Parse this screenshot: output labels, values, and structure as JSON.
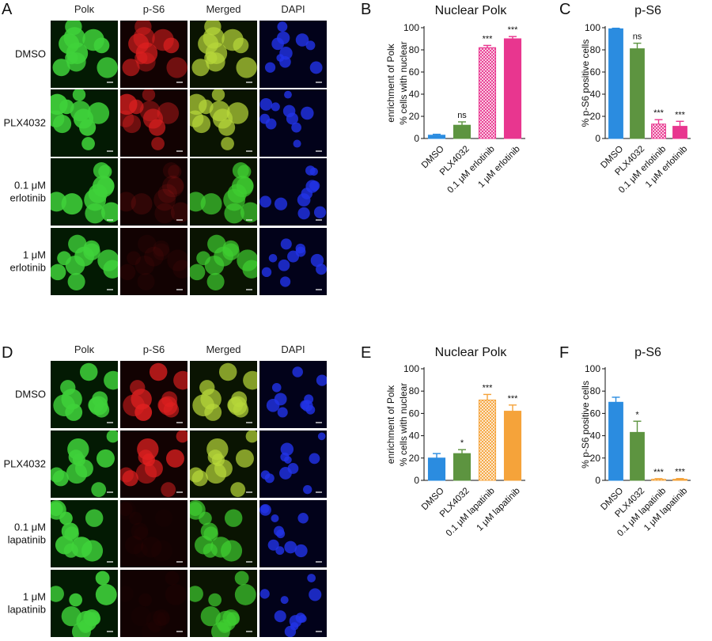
{
  "panels": {
    "A": "A",
    "B": "B",
    "C": "C",
    "D": "D",
    "E": "E",
    "F": "F"
  },
  "micrographs": [
    {
      "letter": "A",
      "columns": [
        "Polκ",
        "p-S6",
        "Merged",
        "DAPI"
      ],
      "rows": [
        {
          "label": [
            "DMSO"
          ],
          "green": 0.9,
          "red": 0.8
        },
        {
          "label": [
            "PLX4032"
          ],
          "green": 0.95,
          "red": 0.75
        },
        {
          "label": [
            "0.1 μM",
            "erlotinib"
          ],
          "green": 0.8,
          "red": 0.15
        },
        {
          "label": [
            "1 μM",
            "erlotinib"
          ],
          "green": 0.8,
          "red": 0.08
        }
      ]
    },
    {
      "letter": "D",
      "columns": [
        "Polκ",
        "p-S6",
        "Merged",
        "DAPI"
      ],
      "rows": [
        {
          "label": [
            "DMSO"
          ],
          "green": 0.85,
          "red": 0.9
        },
        {
          "label": [
            "PLX4032"
          ],
          "green": 0.85,
          "red": 0.85
        },
        {
          "label": [
            "0.1 μM",
            "lapatinib"
          ],
          "green": 0.9,
          "red": 0.03
        },
        {
          "label": [
            "1 μM",
            "lapatinib"
          ],
          "green": 0.9,
          "red": 0.03
        }
      ]
    }
  ],
  "chart_data": [
    {
      "panel": "B",
      "type": "bar",
      "title": "Nuclear Polκ",
      "ylabel": "% cells with nuclear enrichment of Polκ",
      "ylabel_lines": [
        "% cells with nuclear",
        "enrichment of Polκ"
      ],
      "ylim": [
        0,
        100
      ],
      "yticks": [
        0,
        20,
        40,
        60,
        80,
        100
      ],
      "categories": [
        "DMSO",
        "PLX4032",
        "0.1 μM erlotinib",
        "1 μM erlotinib"
      ],
      "values": [
        3,
        12,
        82,
        90
      ],
      "errors": [
        0.8,
        3,
        2,
        2
      ],
      "significance": [
        "",
        "ns",
        "***",
        "***"
      ],
      "colors": [
        "#2b8ce0",
        "#5d9440",
        "#e8368f",
        "#e8368f"
      ],
      "hatched": [
        false,
        false,
        true,
        false
      ]
    },
    {
      "panel": "C",
      "type": "bar",
      "title": "p-S6",
      "ylabel": "% p-S6 positive cells",
      "ylabel_lines": [
        "% p-S6 positive cells"
      ],
      "ylim": [
        0,
        100
      ],
      "yticks": [
        0,
        20,
        40,
        60,
        80,
        100
      ],
      "categories": [
        "DMSO",
        "PLX4032",
        "0.1 μM erlotinib",
        "1 μM erlotinib"
      ],
      "values": [
        99,
        81,
        13,
        11
      ],
      "errors": [
        0.5,
        5,
        4,
        4.5
      ],
      "significance": [
        "",
        "ns",
        "***",
        "***"
      ],
      "colors": [
        "#2b8ce0",
        "#5d9440",
        "#e8368f",
        "#e8368f"
      ],
      "hatched": [
        false,
        false,
        true,
        false
      ]
    },
    {
      "panel": "E",
      "type": "bar",
      "title": "Nuclear Polκ",
      "ylabel": "% cells with nuclear enrichment of Polκ",
      "ylabel_lines": [
        "% cells with nuclear",
        "enrichment of Polκ"
      ],
      "ylim": [
        0,
        100
      ],
      "yticks": [
        0,
        20,
        40,
        60,
        80,
        100
      ],
      "categories": [
        "DMSO",
        "PLX4032",
        "0.1 μM lapatinib",
        "1 μM lapatinib"
      ],
      "values": [
        20,
        24,
        72,
        62
      ],
      "errors": [
        4,
        3.5,
        5,
        5.5
      ],
      "significance": [
        "",
        "*",
        "***",
        "***"
      ],
      "colors": [
        "#2b8ce0",
        "#5d9440",
        "#f5a33a",
        "#f5a33a"
      ],
      "hatched": [
        false,
        false,
        true,
        false
      ]
    },
    {
      "panel": "F",
      "type": "bar",
      "title": "p-S6",
      "ylabel": "% p-S6 positive cells",
      "ylabel_lines": [
        "% p-S6 positive cells"
      ],
      "ylim": [
        0,
        100
      ],
      "yticks": [
        0,
        20,
        40,
        60,
        80,
        100
      ],
      "categories": [
        "DMSO",
        "PLX4032",
        "0.1 μM lapatinib",
        "1 μM lapatinib"
      ],
      "values": [
        70,
        43,
        1,
        1
      ],
      "errors": [
        4.5,
        10,
        0.5,
        0.6
      ],
      "significance": [
        "",
        "*",
        "***",
        "***"
      ],
      "colors": [
        "#2b8ce0",
        "#5d9440",
        "#f5a33a",
        "#f5a33a"
      ],
      "hatched": [
        false,
        false,
        true,
        false
      ]
    }
  ]
}
